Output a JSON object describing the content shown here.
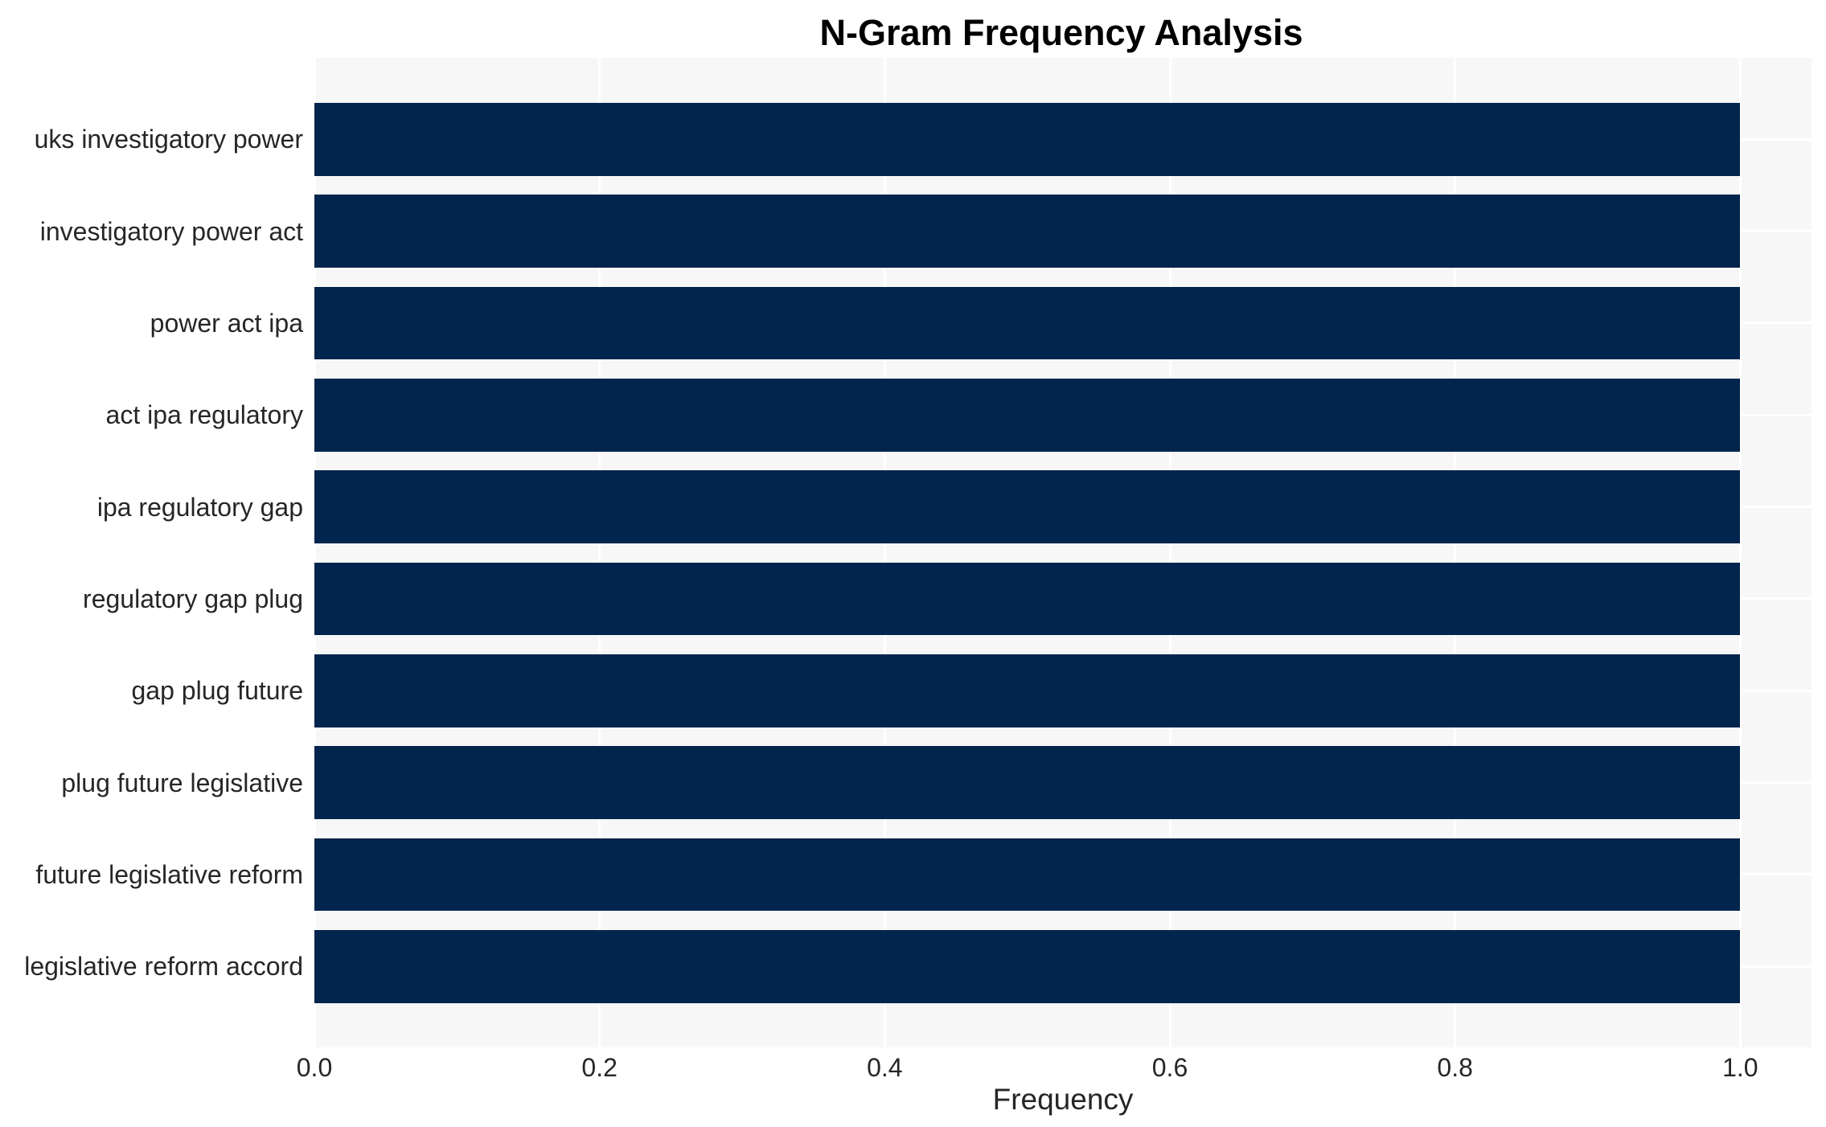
{
  "chart_data": {
    "type": "bar",
    "orientation": "horizontal",
    "title": "N-Gram Frequency Analysis",
    "xlabel": "Frequency",
    "ylabel": "",
    "categories": [
      "uks investigatory power",
      "investigatory power act",
      "power act ipa",
      "act ipa regulatory",
      "ipa regulatory gap",
      "regulatory gap plug",
      "gap plug future",
      "plug future legislative",
      "future legislative reform",
      "legislative reform accord"
    ],
    "values": [
      1.0,
      1.0,
      1.0,
      1.0,
      1.0,
      1.0,
      1.0,
      1.0,
      1.0,
      1.0
    ],
    "xlim": [
      0,
      1.05
    ],
    "xticks": [
      0.0,
      0.2,
      0.4,
      0.6,
      0.8,
      1.0
    ],
    "xtick_labels": [
      "0.0",
      "0.2",
      "0.4",
      "0.6",
      "0.8",
      "1.0"
    ],
    "grid": "on",
    "legend": "none",
    "colors": {
      "bar": "#02254d",
      "plot_background": "#f7f7f7",
      "figure_background": "#ffffff",
      "gridline": "#ffffff",
      "tick_text": "#262626",
      "title_text": "#000000"
    }
  }
}
